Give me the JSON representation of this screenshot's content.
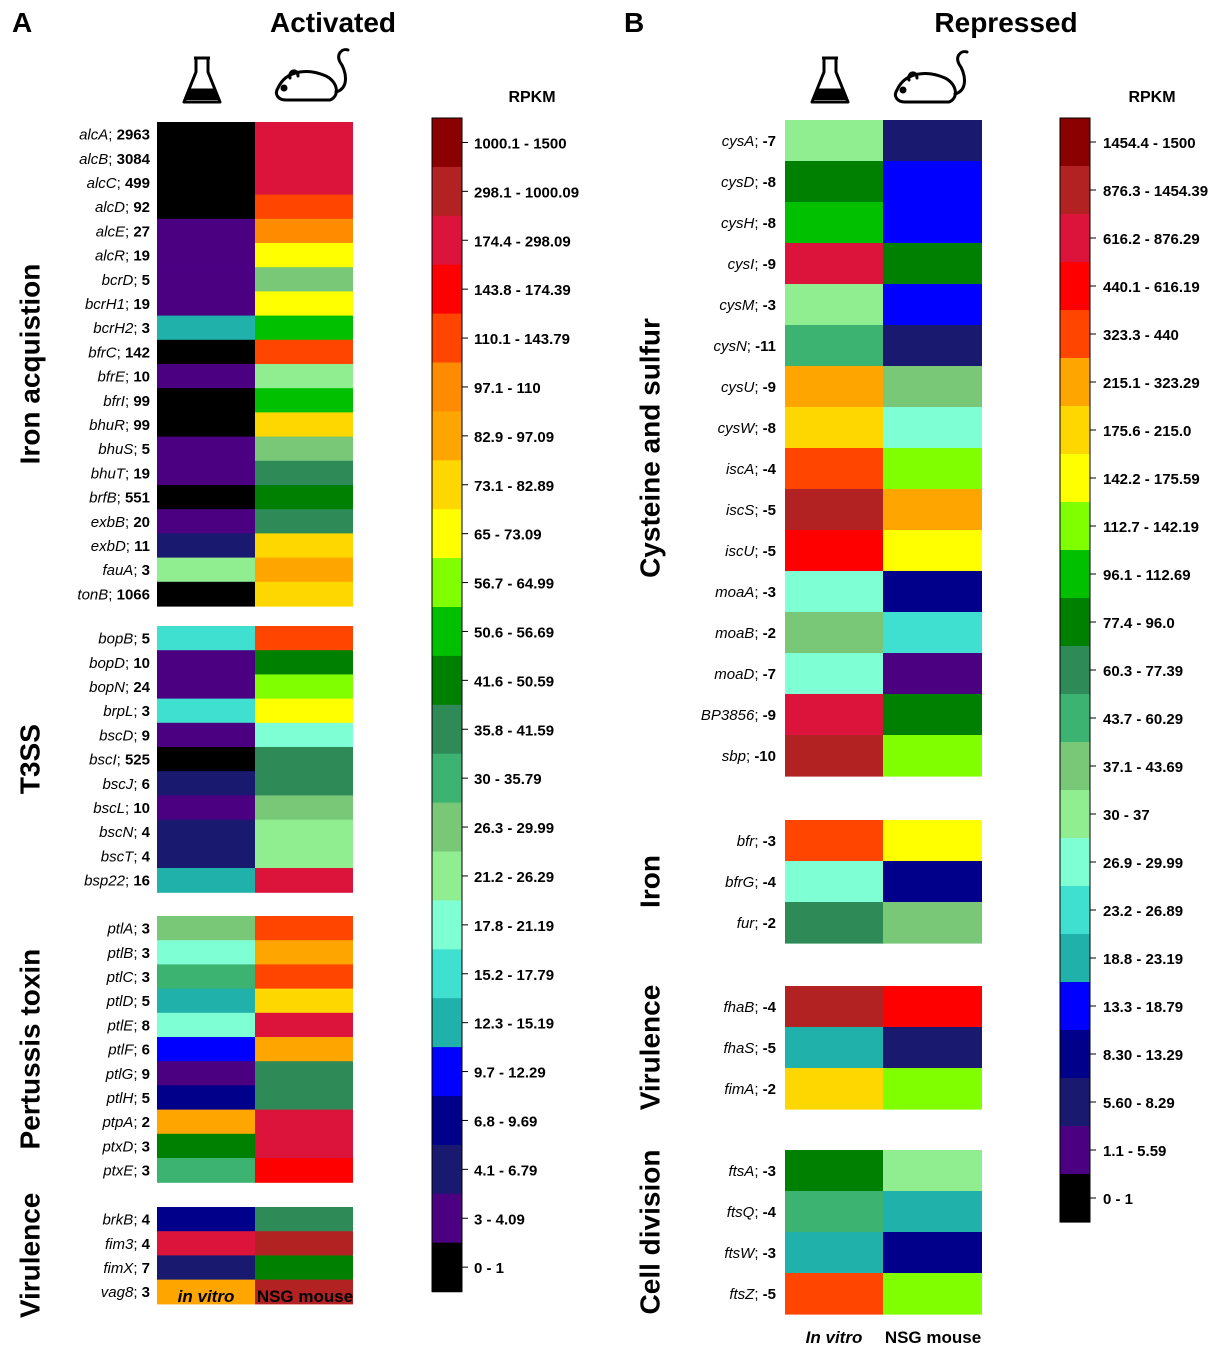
{
  "panels": [
    {
      "letter": "A",
      "title": "Activated",
      "legend_title": "RPKM",
      "col_labels": [
        "in vitro",
        "NSG mouse"
      ],
      "col_icons": [
        "flask-icon",
        "mouse-icon"
      ],
      "legend": [
        {
          "label": "1000.1 - 1500",
          "color": "#8B0000"
        },
        {
          "label": "298.1 - 1000.09",
          "color": "#B22222"
        },
        {
          "label": "174.4 - 298.09",
          "color": "#DC143C"
        },
        {
          "label": "143.8 - 174.39",
          "color": "#FF0000"
        },
        {
          "label": "110.1 - 143.79",
          "color": "#FF4500"
        },
        {
          "label": "97.1 - 110",
          "color": "#FF8C00"
        },
        {
          "label": "82.9 - 97.09",
          "color": "#FFA500"
        },
        {
          "label": "73.1 - 82.89",
          "color": "#FFD700"
        },
        {
          "label": "65 - 73.09",
          "color": "#FFFF00"
        },
        {
          "label": "56.7 - 64.99",
          "color": "#7FFF00"
        },
        {
          "label": "50.6 - 56.69",
          "color": "#00C000"
        },
        {
          "label": "41.6 - 50.59",
          "color": "#008000"
        },
        {
          "label": "35.8 - 41.59",
          "color": "#2E8B57"
        },
        {
          "label": "30 - 35.79",
          "color": "#3CB371"
        },
        {
          "label": "26.3 - 29.99",
          "color": "#78C878"
        },
        {
          "label": "21.2 - 26.29",
          "color": "#90EE90"
        },
        {
          "label": "17.8 - 21.19",
          "color": "#7FFFD4"
        },
        {
          "label": "15.2 - 17.79",
          "color": "#40E0D0"
        },
        {
          "label": "12.3 - 15.19",
          "color": "#20B2AA"
        },
        {
          "label": "9.7 - 12.29",
          "color": "#0000FF"
        },
        {
          "label": "6.8 - 9.69",
          "color": "#00008B"
        },
        {
          "label": "4.1 - 6.79",
          "color": "#191970"
        },
        {
          "label": "3 - 4.09",
          "color": "#4B0082"
        },
        {
          "label": "0 - 1",
          "color": "#000000"
        }
      ],
      "groups": [
        {
          "name": "Iron acquistion",
          "rows": [
            {
              "gene": "alcA",
              "fc": "2963",
              "vitro": 23,
              "mouse": 2
            },
            {
              "gene": "alcB",
              "fc": "3084",
              "vitro": 23,
              "mouse": 2
            },
            {
              "gene": "alcC",
              "fc": "499",
              "vitro": 23,
              "mouse": 2
            },
            {
              "gene": "alcD",
              "fc": "92",
              "vitro": 23,
              "mouse": 4
            },
            {
              "gene": "alcE",
              "fc": "27",
              "vitro": 22,
              "mouse": 5
            },
            {
              "gene": "alcR",
              "fc": "19",
              "vitro": 22,
              "mouse": 8
            },
            {
              "gene": "bcrD",
              "fc": "5",
              "vitro": 22,
              "mouse": 14
            },
            {
              "gene": "bcrH1",
              "fc": "19",
              "vitro": 22,
              "mouse": 8
            },
            {
              "gene": "bcrH2",
              "fc": "3",
              "vitro": 18,
              "mouse": 10
            },
            {
              "gene": "bfrC",
              "fc": "142",
              "vitro": 23,
              "mouse": 4
            },
            {
              "gene": "bfrE",
              "fc": "10",
              "vitro": 22,
              "mouse": 15
            },
            {
              "gene": "bfrI",
              "fc": "99",
              "vitro": 23,
              "mouse": 10
            },
            {
              "gene": "bhuR",
              "fc": "99",
              "vitro": 23,
              "mouse": 7
            },
            {
              "gene": "bhuS",
              "fc": "5",
              "vitro": 22,
              "mouse": 14
            },
            {
              "gene": "bhuT",
              "fc": "19",
              "vitro": 22,
              "mouse": 12
            },
            {
              "gene": "brfB",
              "fc": "551",
              "vitro": 23,
              "mouse": 11
            },
            {
              "gene": "exbB",
              "fc": "20",
              "vitro": 22,
              "mouse": 12
            },
            {
              "gene": "exbD",
              "fc": "11",
              "vitro": 21,
              "mouse": 7
            },
            {
              "gene": "fauA",
              "fc": "3",
              "vitro": 15,
              "mouse": 6
            },
            {
              "gene": "tonB",
              "fc": "1066",
              "vitro": 23,
              "mouse": 7
            }
          ]
        },
        {
          "name": "T3SS",
          "rows": [
            {
              "gene": "bopB",
              "fc": "5",
              "vitro": 17,
              "mouse": 4
            },
            {
              "gene": "bopD",
              "fc": "10",
              "vitro": 22,
              "mouse": 11
            },
            {
              "gene": "bopN",
              "fc": "24",
              "vitro": 22,
              "mouse": 9
            },
            {
              "gene": "brpL",
              "fc": "3",
              "vitro": 17,
              "mouse": 8
            },
            {
              "gene": "bscD",
              "fc": "9",
              "vitro": 22,
              "mouse": 16
            },
            {
              "gene": "bscI",
              "fc": "525",
              "vitro": 23,
              "mouse": 12
            },
            {
              "gene": "bscJ",
              "fc": "6",
              "vitro": 21,
              "mouse": 12
            },
            {
              "gene": "bscL",
              "fc": "10",
              "vitro": 22,
              "mouse": 14
            },
            {
              "gene": "bscN",
              "fc": "4",
              "vitro": 21,
              "mouse": 15
            },
            {
              "gene": "bscT",
              "fc": "4",
              "vitro": 21,
              "mouse": 15
            },
            {
              "gene": "bsp22",
              "fc": "16",
              "vitro": 18,
              "mouse": 2
            }
          ]
        },
        {
          "name": "Pertussis toxin",
          "rows": [
            {
              "gene": "ptlA",
              "fc": "3",
              "vitro": 14,
              "mouse": 4
            },
            {
              "gene": "ptlB",
              "fc": "3",
              "vitro": 16,
              "mouse": 6
            },
            {
              "gene": "ptlC",
              "fc": "3",
              "vitro": 13,
              "mouse": 4
            },
            {
              "gene": "ptlD",
              "fc": "5",
              "vitro": 18,
              "mouse": 7
            },
            {
              "gene": "ptlE",
              "fc": "8",
              "vitro": 16,
              "mouse": 2
            },
            {
              "gene": "ptlF",
              "fc": "6",
              "vitro": 19,
              "mouse": 6
            },
            {
              "gene": "ptlG",
              "fc": "9",
              "vitro": 22,
              "mouse": 12
            },
            {
              "gene": "ptlH",
              "fc": "5",
              "vitro": 20,
              "mouse": 12
            },
            {
              "gene": "ptpA",
              "fc": "2",
              "vitro": 6,
              "mouse": 2
            },
            {
              "gene": "ptxD",
              "fc": "3",
              "vitro": 11,
              "mouse": 2
            },
            {
              "gene": "ptxE",
              "fc": "3",
              "vitro": 13,
              "mouse": 3
            }
          ]
        },
        {
          "name": "Virulence",
          "rows": [
            {
              "gene": "brkB",
              "fc": "4",
              "vitro": 20,
              "mouse": 12
            },
            {
              "gene": "fim3",
              "fc": "4",
              "vitro": 2,
              "mouse": 1
            },
            {
              "gene": "fimX",
              "fc": "7",
              "vitro": 21,
              "mouse": 11
            },
            {
              "gene": "vag8",
              "fc": "3",
              "vitro": 6,
              "mouse": 1
            }
          ]
        }
      ]
    },
    {
      "letter": "B",
      "title": "Repressed",
      "legend_title": "RPKM",
      "col_labels": [
        "In vitro",
        "NSG mouse"
      ],
      "col_icons": [
        "flask-icon",
        "mouse-icon"
      ],
      "legend": [
        {
          "label": "1454.4 - 1500",
          "color": "#8B0000"
        },
        {
          "label": "876.3 - 1454.39",
          "color": "#B22222"
        },
        {
          "label": "616.2 - 876.29",
          "color": "#DC143C"
        },
        {
          "label": "440.1 - 616.19",
          "color": "#FF0000"
        },
        {
          "label": "323.3 - 440",
          "color": "#FF4500"
        },
        {
          "label": "215.1 - 323.29",
          "color": "#FFA500"
        },
        {
          "label": "175.6 - 215.0",
          "color": "#FFD700"
        },
        {
          "label": "142.2 - 175.59",
          "color": "#FFFF00"
        },
        {
          "label": "112.7 - 142.19",
          "color": "#7FFF00"
        },
        {
          "label": "96.1 - 112.69",
          "color": "#00C000"
        },
        {
          "label": "77.4 - 96.0",
          "color": "#008000"
        },
        {
          "label": "60.3 - 77.39",
          "color": "#2E8B57"
        },
        {
          "label": "43.7 - 60.29",
          "color": "#3CB371"
        },
        {
          "label": "37.1 - 43.69",
          "color": "#78C878"
        },
        {
          "label": "30 - 37",
          "color": "#90EE90"
        },
        {
          "label": "26.9 - 29.99",
          "color": "#7FFFD4"
        },
        {
          "label": "23.2 - 26.89",
          "color": "#40E0D0"
        },
        {
          "label": "18.8 - 23.19",
          "color": "#20B2AA"
        },
        {
          "label": "13.3 - 18.79",
          "color": "#0000FF"
        },
        {
          "label": "8.30 - 13.29",
          "color": "#00008B"
        },
        {
          "label": "5.60 - 8.29",
          "color": "#191970"
        },
        {
          "label": "1.1 - 5.59",
          "color": "#4B0082"
        },
        {
          "label": "0 - 1",
          "color": "#000000"
        }
      ],
      "groups": [
        {
          "name": "Cysteine and sulfur",
          "rows": [
            {
              "gene": "cysA",
              "fc": "-7",
              "vitro": 14,
              "mouse": 20
            },
            {
              "gene": "cysD",
              "fc": "-8",
              "vitro": 10,
              "mouse": 18
            },
            {
              "gene": "cysH",
              "fc": "-8",
              "vitro": 9,
              "mouse": 18
            },
            {
              "gene": "cysI",
              "fc": "-9",
              "vitro": 2,
              "mouse": 10
            },
            {
              "gene": "cysM",
              "fc": "-3",
              "vitro": 14,
              "mouse": 18
            },
            {
              "gene": "cysN",
              "fc": "-11",
              "vitro": 12,
              "mouse": 20
            },
            {
              "gene": "cysU",
              "fc": "-9",
              "vitro": 5,
              "mouse": 13
            },
            {
              "gene": "cysW",
              "fc": "-8",
              "vitro": 6,
              "mouse": 15
            },
            {
              "gene": "iscA",
              "fc": "-4",
              "vitro": 4,
              "mouse": 8
            },
            {
              "gene": "iscS",
              "fc": "-5",
              "vitro": 1,
              "mouse": 5
            },
            {
              "gene": "iscU",
              "fc": "-5",
              "vitro": 3,
              "mouse": 7
            },
            {
              "gene": "moaA",
              "fc": "-3",
              "vitro": 15,
              "mouse": 19
            },
            {
              "gene": "moaB",
              "fc": "-2",
              "vitro": 13,
              "mouse": 16
            },
            {
              "gene": "moaD",
              "fc": "-7",
              "vitro": 15,
              "mouse": 21
            },
            {
              "gene": "BP3856",
              "fc": "-9",
              "vitro": 2,
              "mouse": 10
            },
            {
              "gene": "sbp",
              "fc": "-10",
              "vitro": 1,
              "mouse": 8
            }
          ]
        },
        {
          "name": "Iron",
          "rows": [
            {
              "gene": "bfr",
              "fc": "-3",
              "vitro": 4,
              "mouse": 7
            },
            {
              "gene": "bfrG",
              "fc": "-4",
              "vitro": 15,
              "mouse": 19
            },
            {
              "gene": "fur",
              "fc": "-2",
              "vitro": 11,
              "mouse": 13
            }
          ]
        },
        {
          "name": "Virulence",
          "rows": [
            {
              "gene": "fhaB",
              "fc": "-4",
              "vitro": 1,
              "mouse": 3
            },
            {
              "gene": "fhaS",
              "fc": "-5",
              "vitro": 17,
              "mouse": 20
            },
            {
              "gene": "fimA",
              "fc": "-2",
              "vitro": 6,
              "mouse": 8
            }
          ]
        },
        {
          "name": "Cell division",
          "rows": [
            {
              "gene": "ftsA",
              "fc": "-3",
              "vitro": 10,
              "mouse": 14
            },
            {
              "gene": "ftsQ",
              "fc": "-4",
              "vitro": 12,
              "mouse": 17
            },
            {
              "gene": "ftsW",
              "fc": "-3",
              "vitro": 17,
              "mouse": 19
            },
            {
              "gene": "ftsZ",
              "fc": "-5",
              "vitro": 4,
              "mouse": 8
            }
          ]
        }
      ]
    }
  ],
  "chart_data": [
    {
      "type": "heatmap",
      "title": "Activated",
      "columns": [
        "in vitro",
        "NSG mouse"
      ],
      "value_units": "RPKM (binned, index into legend)",
      "legend_bins": [
        "1000.1 - 1500",
        "298.1 - 1000.09",
        "174.4 - 298.09",
        "143.8 - 174.39",
        "110.1 - 143.79",
        "97.1 - 110",
        "82.9 - 97.09",
        "73.1 - 82.89",
        "65 - 73.09",
        "56.7 - 64.99",
        "50.6 - 56.69",
        "41.6 - 50.59",
        "35.8 - 41.59",
        "30 - 35.79",
        "26.3 - 29.99",
        "21.2 - 26.29",
        "17.8 - 21.19",
        "15.2 - 17.79",
        "12.3 - 15.19",
        "9.7 - 12.29",
        "6.8 - 9.69",
        "4.1 - 6.79",
        "3 - 4.09",
        "0 - 1"
      ]
    },
    {
      "type": "heatmap",
      "title": "Repressed",
      "columns": [
        "In vitro",
        "NSG mouse"
      ],
      "value_units": "RPKM (binned, index into legend)",
      "legend_bins": [
        "1454.4 - 1500",
        "876.3 - 1454.39",
        "616.2 - 876.29",
        "440.1 - 616.19",
        "323.3 - 440",
        "215.1 - 323.29",
        "175.6 - 215.0",
        "142.2 - 175.59",
        "112.7 - 142.19",
        "96.1 - 112.69",
        "77.4 - 96.0",
        "60.3 - 77.39",
        "43.7 - 60.29",
        "37.1 - 43.69",
        "30 - 37",
        "26.9 - 29.99",
        "23.2 - 26.89",
        "18.8 - 23.19",
        "13.3 - 18.79",
        "8.30 - 13.29",
        "5.60 - 8.29",
        "1.1 - 5.59",
        "0 - 1"
      ]
    }
  ]
}
